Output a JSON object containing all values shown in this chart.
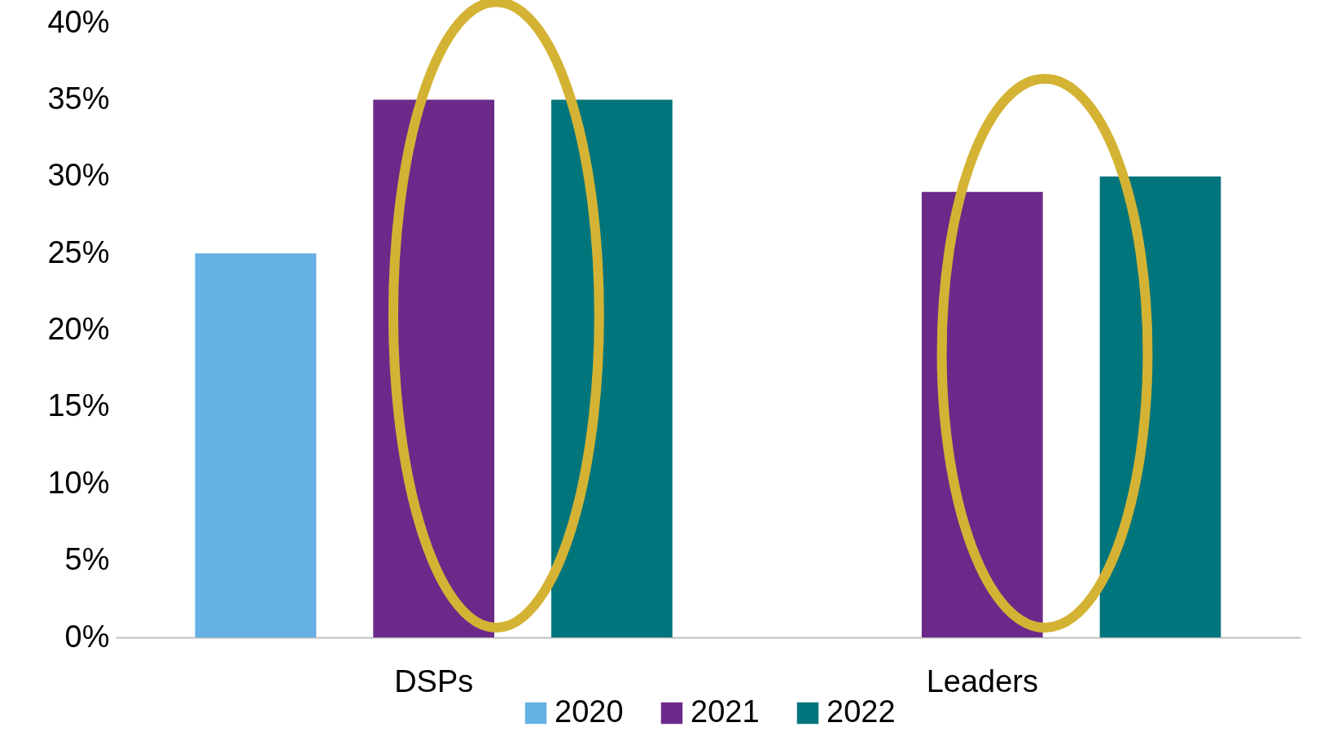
{
  "chart_data": {
    "type": "bar",
    "categories": [
      "DSPs",
      "Leaders"
    ],
    "series": [
      {
        "name": "2020",
        "color": "#65b0e4",
        "values": [
          25,
          null
        ]
      },
      {
        "name": "2021",
        "color": "#6b2a8a",
        "values": [
          35,
          29
        ]
      },
      {
        "name": "2022",
        "color": "#00757c",
        "values": [
          35,
          30
        ]
      }
    ],
    "ylim": [
      0,
      40
    ],
    "yticks": [
      {
        "value": 0,
        "label": "0%"
      },
      {
        "value": 5,
        "label": "5%"
      },
      {
        "value": 10,
        "label": "10%"
      },
      {
        "value": 15,
        "label": "15%"
      },
      {
        "value": 20,
        "label": "20%"
      },
      {
        "value": 25,
        "label": "25%"
      },
      {
        "value": 30,
        "label": "30%"
      },
      {
        "value": 35,
        "label": "35%"
      },
      {
        "value": 40,
        "label": "40%"
      }
    ],
    "grid": false,
    "legend": "bottom"
  }
}
